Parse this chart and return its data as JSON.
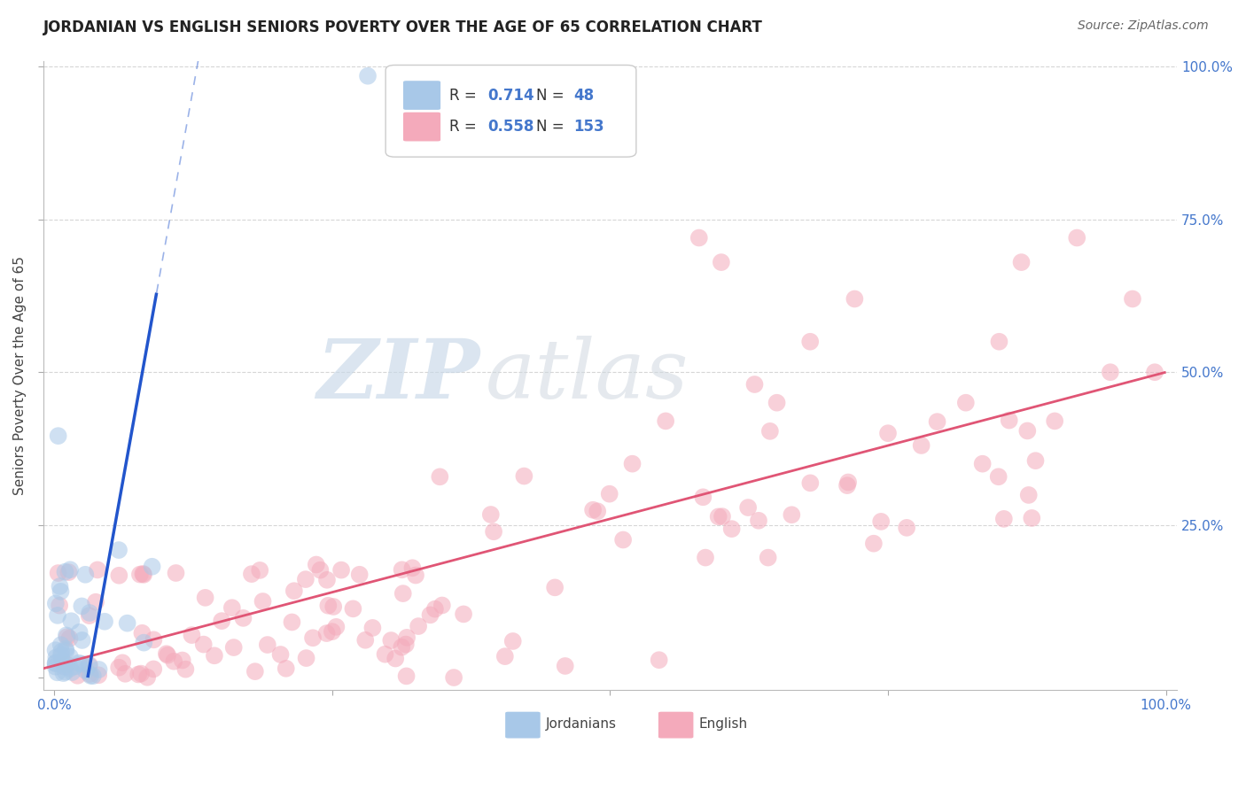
{
  "title": "JORDANIAN VS ENGLISH SENIORS POVERTY OVER THE AGE OF 65 CORRELATION CHART",
  "source": "Source: ZipAtlas.com",
  "ylabel": "Seniors Poverty Over the Age of 65",
  "xlim": [
    0.0,
    1.0
  ],
  "ylim": [
    0.0,
    1.0
  ],
  "legend_r_blue": "0.714",
  "legend_n_blue": "48",
  "legend_r_pink": "0.558",
  "legend_n_pink": "153",
  "blue_color": "#A8C8E8",
  "pink_color": "#F4AABB",
  "blue_line_color": "#2255CC",
  "pink_line_color": "#E05575",
  "label_color": "#4477CC",
  "grid_color": "#CCCCCC",
  "watermark_zip": "ZIP",
  "watermark_atlas": "atlas",
  "title_fontsize": 12,
  "source_fontsize": 10,
  "tick_fontsize": 11,
  "ylabel_fontsize": 11
}
